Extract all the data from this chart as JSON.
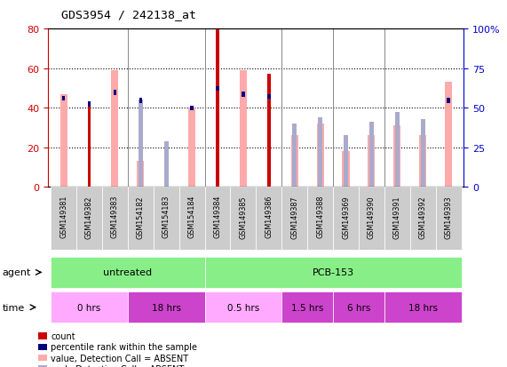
{
  "title": "GDS3954 / 242138_at",
  "samples": [
    "GSM149381",
    "GSM149382",
    "GSM149383",
    "GSM154182",
    "GSM154183",
    "GSM154184",
    "GSM149384",
    "GSM149385",
    "GSM149386",
    "GSM149387",
    "GSM149388",
    "GSM149369",
    "GSM149390",
    "GSM149391",
    "GSM149392",
    "GSM149393"
  ],
  "count_values": [
    0,
    43,
    0,
    0,
    0,
    0,
    80,
    0,
    57,
    0,
    0,
    0,
    0,
    0,
    0,
    0
  ],
  "rank_values": [
    46,
    43,
    49,
    45,
    0,
    41,
    51,
    48,
    47,
    0,
    0,
    0,
    0,
    0,
    0,
    45
  ],
  "value_absent": [
    47,
    0,
    59,
    13,
    0,
    40,
    0,
    59,
    0,
    26,
    32,
    18,
    26,
    31,
    26,
    53
  ],
  "rank_absent": [
    0,
    0,
    0,
    44,
    23,
    0,
    0,
    0,
    0,
    32,
    35,
    26,
    33,
    38,
    34,
    0
  ],
  "ylim": [
    0,
    80
  ],
  "y2lim": [
    0,
    100
  ],
  "yticks": [
    0,
    20,
    40,
    60,
    80
  ],
  "y2ticks": [
    0,
    25,
    50,
    75,
    100
  ],
  "color_count": "#cc0000",
  "color_rank": "#00007f",
  "color_value_absent": "#ffaaaa",
  "color_rank_absent": "#aaaacc",
  "agent_groups": [
    {
      "label": "untreated",
      "start": 0,
      "end": 6
    },
    {
      "label": "PCB-153",
      "start": 6,
      "end": 16
    }
  ],
  "time_groups": [
    {
      "label": "0 hrs",
      "start": 0,
      "end": 3,
      "color": "#ffaaff"
    },
    {
      "label": "18 hrs",
      "start": 3,
      "end": 6,
      "color": "#cc44cc"
    },
    {
      "label": "0.5 hrs",
      "start": 6,
      "end": 9,
      "color": "#ffaaff"
    },
    {
      "label": "1.5 hrs",
      "start": 9,
      "end": 11,
      "color": "#cc44cc"
    },
    {
      "label": "6 hrs",
      "start": 11,
      "end": 13,
      "color": "#cc44cc"
    },
    {
      "label": "18 hrs",
      "start": 13,
      "end": 16,
      "color": "#cc44cc"
    }
  ],
  "agent_color": "#88ee88",
  "background_color": "#ffffff",
  "tick_label_color_left": "#cc0000",
  "tick_label_color_right": "#0000cc",
  "xtick_bg": "#cccccc",
  "separator_color": "#888888"
}
